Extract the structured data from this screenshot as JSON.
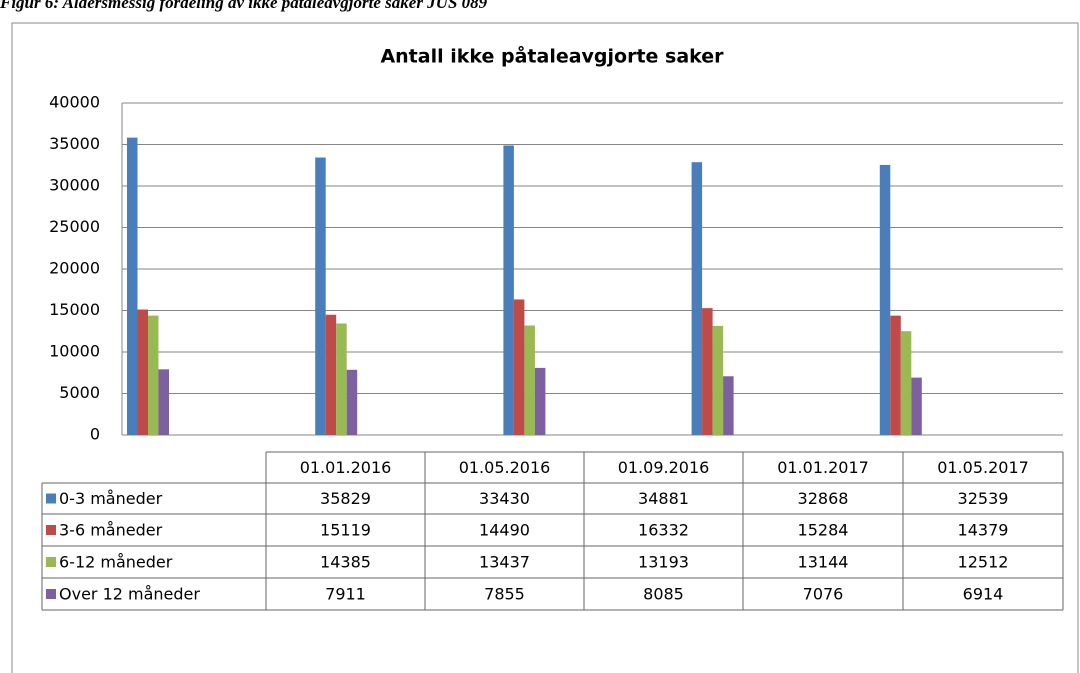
{
  "caption": "Figur 6: Aldersmessig fordeling av ikke påtaleavgjorte saker JUS 089",
  "chart_data": {
    "type": "bar",
    "title": "Antall ikke påtaleavgjorte saker",
    "categories": [
      "01.01.2016",
      "01.05.2016",
      "01.09.2016",
      "01.01.2017",
      "01.05.2017"
    ],
    "series": [
      {
        "name": "0-3 måneder",
        "color": "#4a7ebb",
        "values": [
          35829,
          33430,
          34881,
          32868,
          32539
        ]
      },
      {
        "name": "3-6 måneder",
        "color": "#be4b48",
        "values": [
          15119,
          14490,
          16332,
          15284,
          14379
        ]
      },
      {
        "name": "6-12 måneder",
        "color": "#98b954",
        "values": [
          14385,
          13437,
          13193,
          13144,
          12512
        ]
      },
      {
        "name": "Over 12 måneder",
        "color": "#7d60a0",
        "values": [
          7911,
          7855,
          8085,
          7076,
          6914
        ]
      }
    ],
    "ylim": [
      0,
      40000
    ],
    "yticks": [
      0,
      5000,
      10000,
      15000,
      20000,
      25000,
      30000,
      35000,
      40000
    ],
    "grid": true
  }
}
